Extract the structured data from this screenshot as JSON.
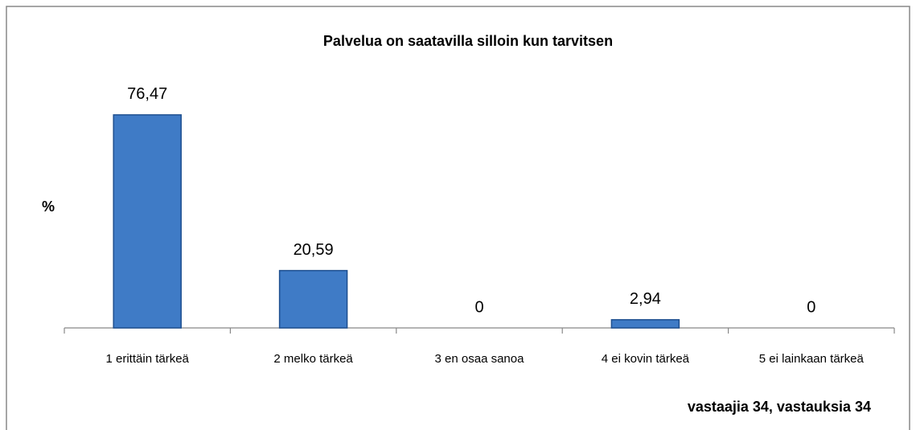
{
  "chart_data": {
    "type": "bar",
    "title": "Palvelua on saatavilla silloin kun tarvitsen",
    "y_label": "%",
    "categories": [
      "1 erittäin tärkeä",
      "2 melko tärkeä",
      "3 en osaa sanoa",
      "4 ei kovin tärkeä",
      "5 ei lainkaan tärkeä"
    ],
    "values": [
      76.47,
      20.59,
      0,
      2.94,
      0
    ],
    "value_labels": [
      "76,47",
      "20,59",
      "0",
      "2,94",
      "0"
    ],
    "color": "#3f7bc6",
    "ylim": [
      0,
      90
    ],
    "note": "vastaajia 34, vastauksia 34"
  }
}
